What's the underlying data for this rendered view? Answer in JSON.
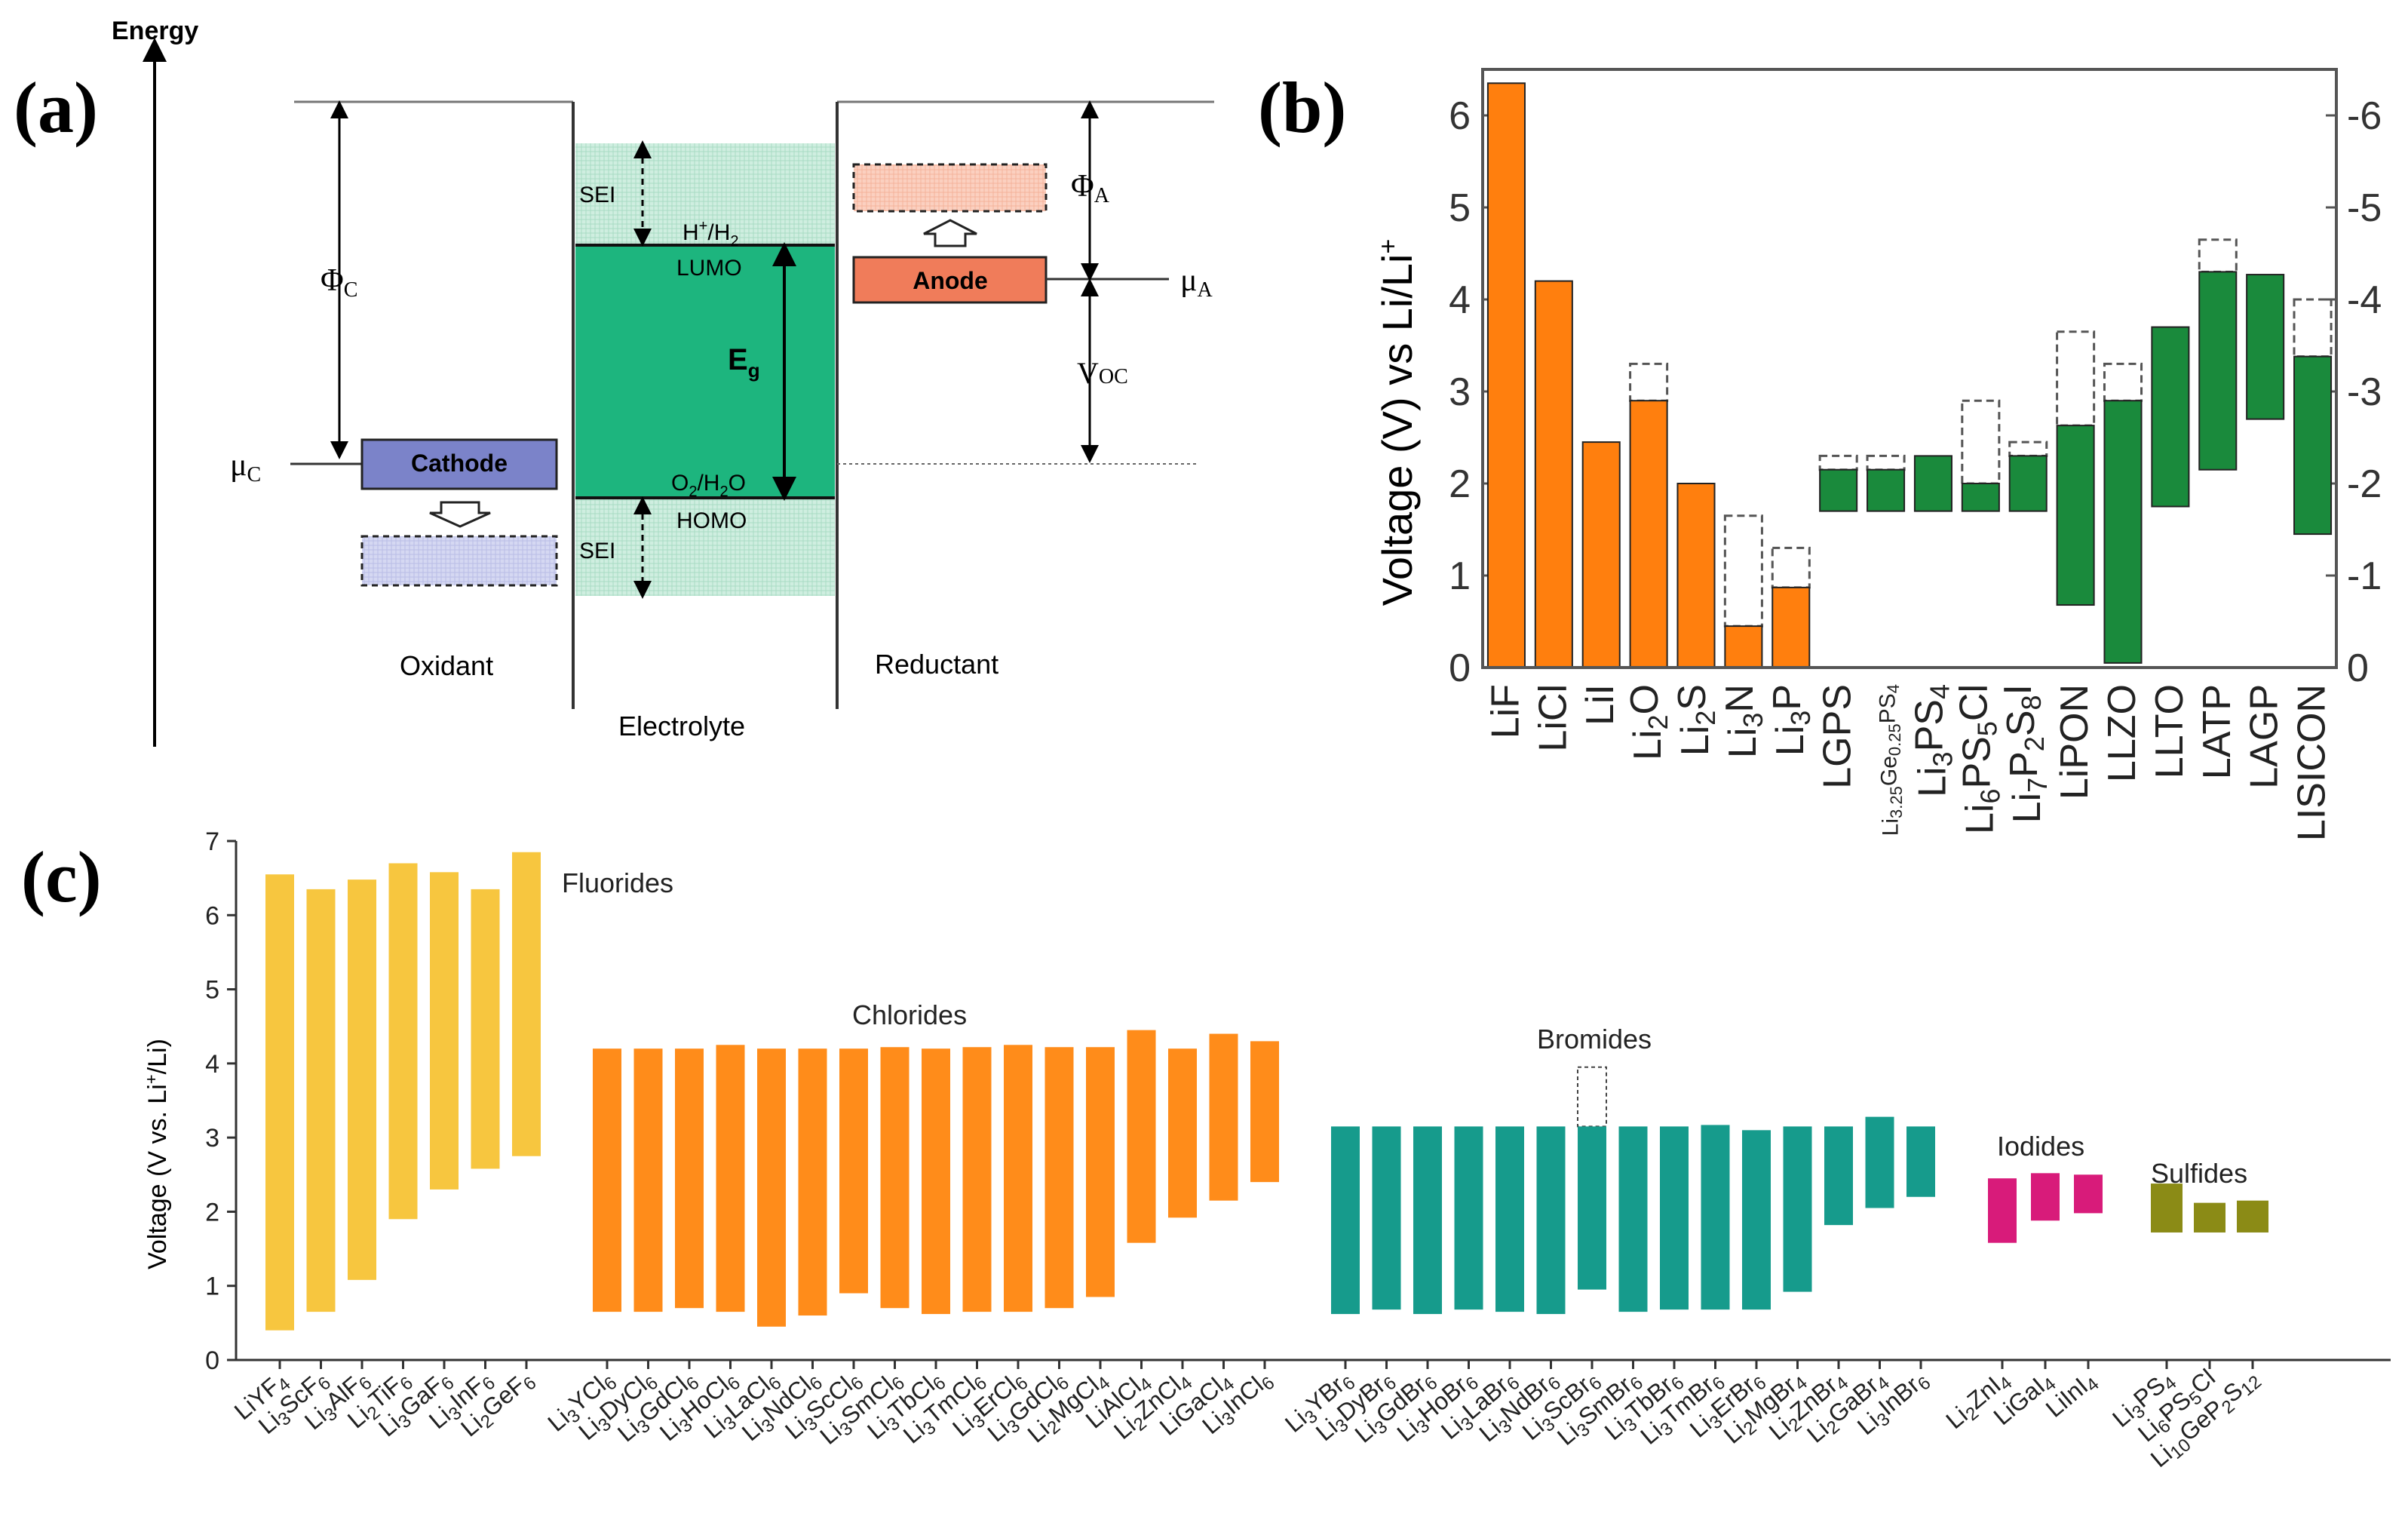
{
  "panels": {
    "a": {
      "label": "(a)"
    },
    "b": {
      "label": "(b)"
    },
    "c": {
      "label": "(c)"
    }
  },
  "energy_diagram": {
    "energy_axis": "Energy",
    "sei_top": "SEI",
    "sei_bottom": "SEI",
    "h_couple": "H",
    "h_sup": "+",
    "h2": "/H",
    "h2_sub": "2",
    "lumo": "LUMO",
    "homo": "HOMO",
    "o2": "O",
    "o2_sub": "2",
    "h2o": "/H",
    "h2o_sub": "2",
    "o_end": "O",
    "eg": "E",
    "eg_sub": "g",
    "phi_c": "Φ",
    "phi_c_sub": "C",
    "phi_a": "Φ",
    "phi_a_sub": "A",
    "mu_c": "μ",
    "mu_c_sub": "C",
    "mu_a": "μ",
    "mu_a_sub": "A",
    "voc": "V",
    "voc_sub": "OC",
    "cathode": "Cathode",
    "anode": "Anode",
    "oxidant": "Oxidant",
    "electrolyte": "Electrolyte",
    "reductant": "Reductant",
    "colors": {
      "cathode": "#7b83c9",
      "anode": "#f07c5a",
      "electrolyte": "#1db57e",
      "sei": "#cfeee0"
    }
  },
  "chart_data": [
    {
      "id": "b",
      "type": "bar",
      "subtype": "floating-range",
      "ylabel": "Voltage (V) vs Li/Li",
      "ylabel_sup": "+",
      "ylim": [
        0,
        6.5
      ],
      "y_ticks": [
        "0",
        "1",
        "2",
        "3",
        "4",
        "5",
        "6"
      ],
      "y2_ticks": [
        "0",
        "-1",
        "-2",
        "-3",
        "-4",
        "-5",
        "-6"
      ],
      "colors": {
        "binary": "#ff7f0e",
        "electrolyte": "#1a8a3c"
      },
      "categories": [
        "LiF",
        "LiCl",
        "LiI",
        "Li2O",
        "Li2S",
        "Li3N",
        "Li3P",
        "LGPS",
        "Li3.25Ge0.25PS4",
        "Li3PS4",
        "Li6PS5Cl",
        "Li7P2S8I",
        "LiPON",
        "LLZO",
        "LLTO",
        "LATP",
        "LAGP",
        "LISICON"
      ],
      "bars": [
        {
          "label": "LiF",
          "color": "binary",
          "low": 0,
          "high": 6.35
        },
        {
          "label": "LiCl",
          "color": "binary",
          "low": 0,
          "high": 4.2
        },
        {
          "label": "LiI",
          "color": "binary",
          "low": 0,
          "high": 2.45
        },
        {
          "label": "Li2O",
          "color": "binary",
          "low": 0,
          "high": 2.9,
          "dashed_high": 3.3
        },
        {
          "label": "Li2S",
          "color": "binary",
          "low": 0,
          "high": 2.0
        },
        {
          "label": "Li3N",
          "color": "binary",
          "low": 0,
          "high": 0.45,
          "dashed_high": 1.65
        },
        {
          "label": "Li3P",
          "color": "binary",
          "low": 0,
          "high": 0.87,
          "dashed_high": 1.3
        },
        {
          "label": "LGPS",
          "color": "electrolyte",
          "low": 1.7,
          "high": 2.15,
          "dashed_high": 2.3
        },
        {
          "label": "Li3.25Ge0.25PS4",
          "color": "electrolyte",
          "low": 1.7,
          "high": 2.15,
          "dashed_high": 2.3
        },
        {
          "label": "Li3PS4",
          "color": "electrolyte",
          "low": 1.7,
          "high": 2.3
        },
        {
          "label": "Li6PS5Cl",
          "color": "electrolyte",
          "low": 1.7,
          "high": 2.0,
          "dashed_high": 2.9
        },
        {
          "label": "Li7P2S8I",
          "color": "electrolyte",
          "low": 1.7,
          "high": 2.3,
          "dashed_high": 2.45
        },
        {
          "label": "LiPON",
          "color": "electrolyte",
          "low": 0.68,
          "high": 2.63,
          "dashed_high": 3.65
        },
        {
          "label": "LLZO",
          "color": "electrolyte",
          "low": 0.05,
          "high": 2.9,
          "dashed_high": 3.3
        },
        {
          "label": "LLTO",
          "color": "electrolyte",
          "low": 1.75,
          "high": 3.7
        },
        {
          "label": "LATP",
          "color": "electrolyte",
          "low": 2.15,
          "high": 4.3,
          "dashed_high": 4.65
        },
        {
          "label": "LAGP",
          "color": "electrolyte",
          "low": 2.7,
          "high": 4.27
        },
        {
          "label": "LISICON",
          "color": "electrolyte",
          "low": 1.45,
          "high": 3.38,
          "dashed_high": 4.0
        }
      ]
    },
    {
      "id": "c",
      "type": "bar",
      "subtype": "floating-range",
      "ylabel": "Voltage (V vs. Li",
      "ylabel_sup": "+",
      "ylabel_end": "/Li)",
      "ylim": [
        0,
        7
      ],
      "y_ticks": [
        "0",
        "1",
        "2",
        "3",
        "4",
        "5",
        "6",
        "7"
      ],
      "groups": [
        {
          "name": "Fluorides",
          "color": "#f7c63f",
          "bars": [
            {
              "label": "LiYF4",
              "low": 0.4,
              "high": 6.55
            },
            {
              "label": "Li3ScF6",
              "low": 0.65,
              "high": 6.35
            },
            {
              "label": "Li3AlF6",
              "low": 1.08,
              "high": 6.48
            },
            {
              "label": "Li2TiF6",
              "low": 1.9,
              "high": 6.7
            },
            {
              "label": "Li3GaF6",
              "low": 2.3,
              "high": 6.58
            },
            {
              "label": "Li3InF6",
              "low": 2.58,
              "high": 6.35
            },
            {
              "label": "Li2GeF6",
              "low": 2.75,
              "high": 6.85
            }
          ]
        },
        {
          "name": "Chlorides",
          "color": "#ff8c1a",
          "bars": [
            {
              "label": "Li3YCl6",
              "low": 0.65,
              "high": 4.2
            },
            {
              "label": "Li3DyCl6",
              "low": 0.65,
              "high": 4.2
            },
            {
              "label": "Li3GdCl6",
              "low": 0.7,
              "high": 4.2
            },
            {
              "label": "Li3HoCl6",
              "low": 0.65,
              "high": 4.25
            },
            {
              "label": "Li3LaCl6",
              "low": 0.45,
              "high": 4.2
            },
            {
              "label": "Li3NdCl6",
              "low": 0.6,
              "high": 4.2
            },
            {
              "label": "Li3ScCl6",
              "low": 0.9,
              "high": 4.2
            },
            {
              "label": "Li3SmCl6",
              "low": 0.7,
              "high": 4.22
            },
            {
              "label": "Li3TbCl6",
              "low": 0.62,
              "high": 4.2
            },
            {
              "label": "Li3TmCl6",
              "low": 0.65,
              "high": 4.22
            },
            {
              "label": "Li3ErCl6",
              "low": 0.65,
              "high": 4.25
            },
            {
              "label": "Li3GdCl6",
              "low": 0.7,
              "high": 4.22
            },
            {
              "label": "Li2MgCl4",
              "low": 0.85,
              "high": 4.22
            },
            {
              "label": "LiAlCl4",
              "low": 1.58,
              "high": 4.45
            },
            {
              "label": "Li2ZnCl4",
              "low": 1.92,
              "high": 4.2
            },
            {
              "label": "LiGaCl4",
              "low": 2.15,
              "high": 4.4
            },
            {
              "label": "Li3InCl6",
              "low": 2.4,
              "high": 4.3
            }
          ]
        },
        {
          "name": "Bromides",
          "color": "#169b8c",
          "bars": [
            {
              "label": "Li3YBr6",
              "low": 0.62,
              "high": 3.15
            },
            {
              "label": "Li3DyBr6",
              "low": 0.68,
              "high": 3.15
            },
            {
              "label": "Li3GdBr6",
              "low": 0.62,
              "high": 3.15
            },
            {
              "label": "Li3HoBr6",
              "low": 0.68,
              "high": 3.15
            },
            {
              "label": "Li3LaBr6",
              "low": 0.65,
              "high": 3.15
            },
            {
              "label": "Li3NdBr6",
              "low": 0.62,
              "high": 3.15
            },
            {
              "label": "Li3ScBr6",
              "low": 0.95,
              "high": 3.15,
              "dashed_high": 3.95
            },
            {
              "label": "Li3SmBr6",
              "low": 0.65,
              "high": 3.15
            },
            {
              "label": "Li3TbBr6",
              "low": 0.68,
              "high": 3.15
            },
            {
              "label": "Li3TmBr6",
              "low": 0.68,
              "high": 3.17
            },
            {
              "label": "Li3ErBr6",
              "low": 0.68,
              "high": 3.1
            },
            {
              "label": "Li2MgBr4",
              "low": 0.92,
              "high": 3.15
            },
            {
              "label": "Li2ZnBr4",
              "low": 1.82,
              "high": 3.15
            },
            {
              "label": "Li2GaBr4",
              "low": 2.05,
              "high": 3.28
            },
            {
              "label": "Li3InBr6",
              "low": 2.2,
              "high": 3.15
            }
          ]
        },
        {
          "name": "Iodides",
          "color": "#d81b7a",
          "bars": [
            {
              "label": "Li2ZnI4",
              "low": 1.58,
              "high": 2.45
            },
            {
              "label": "LiGaI4",
              "low": 1.88,
              "high": 2.52
            },
            {
              "label": "LiInI4",
              "low": 1.98,
              "high": 2.5
            }
          ]
        },
        {
          "name": "Sulfides",
          "color": "#8b8b16",
          "bars": [
            {
              "label": "Li3PS4",
              "low": 1.72,
              "high": 2.38
            },
            {
              "label": "Li6PS5Cl",
              "low": 1.72,
              "high": 2.12
            },
            {
              "label": "Li10GeP2S12",
              "low": 1.72,
              "high": 2.15
            }
          ]
        }
      ]
    }
  ]
}
